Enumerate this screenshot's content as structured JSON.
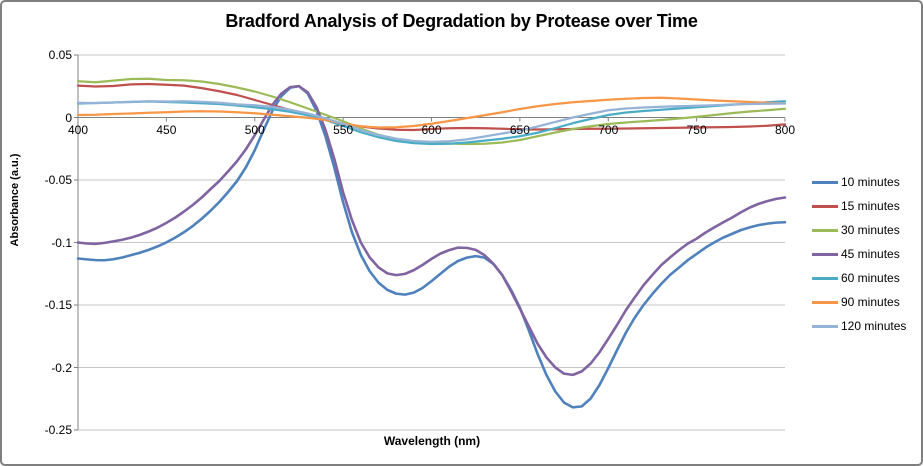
{
  "window": {
    "background": "#FFFFFF",
    "border_color": "#7F7F7F"
  },
  "chart_data": {
    "type": "line",
    "title": "Bradford Analysis of Degradation by Protease over Time",
    "xlabel": "Wavelength (nm)",
    "ylabel": "Absorbance (a.u.)",
    "xlim": [
      400,
      800
    ],
    "ylim": [
      -0.25,
      0.05
    ],
    "x_ticks": [
      400,
      450,
      500,
      550,
      600,
      650,
      700,
      750,
      800
    ],
    "y_ticks": [
      0.05,
      0,
      -0.05,
      -0.1,
      -0.15,
      -0.2,
      -0.25
    ],
    "y_tick_labels": [
      "0.05",
      "0",
      "-0.05",
      "-0.1",
      "-0.15",
      "-0.2",
      "-0.25"
    ],
    "grid": true,
    "gridline_color": "#C6C6C6",
    "axis_color": "#808080",
    "legend_position": "right",
    "series": [
      {
        "name": "10 minutes",
        "color": "#4F81BD",
        "stroke_width": 2.6,
        "x_start": 400,
        "x_step": 5,
        "values": [
          -0.1128,
          -0.1135,
          -0.1141,
          -0.1142,
          -0.1134,
          -0.112,
          -0.1101,
          -0.1082,
          -0.1059,
          -0.1031,
          -0.0999,
          -0.0961,
          -0.0917,
          -0.0867,
          -0.081,
          -0.0746,
          -0.0675,
          -0.0595,
          -0.0508,
          -0.0398,
          -0.0262,
          -0.0101,
          0.0054,
          0.0171,
          0.0238,
          0.0251,
          0.0192,
          0.0052,
          -0.015,
          -0.04,
          -0.0678,
          -0.0918,
          -0.1099,
          -0.1229,
          -0.1321,
          -0.1379,
          -0.1409,
          -0.1417,
          -0.1401,
          -0.1363,
          -0.1309,
          -0.1251,
          -0.1193,
          -0.1148,
          -0.1121,
          -0.1109,
          -0.1121,
          -0.1171,
          -0.1259,
          -0.1379,
          -0.1521,
          -0.17,
          -0.1891,
          -0.2059,
          -0.2191,
          -0.2281,
          -0.2319,
          -0.2311,
          -0.2249,
          -0.2141,
          -0.2005,
          -0.1861,
          -0.1721,
          -0.1601,
          -0.1499,
          -0.1411,
          -0.1331,
          -0.1259,
          -0.1201,
          -0.1141,
          -0.1091,
          -0.1041,
          -0.0999,
          -0.0961,
          -0.0931,
          -0.0901,
          -0.0879,
          -0.0861,
          -0.0849,
          -0.0841,
          -0.0838
        ]
      },
      {
        "name": "15 minutes",
        "color": "#C0504D",
        "stroke_width": 2.2,
        "x_start": 400,
        "x_step": 10,
        "values": [
          0.0255,
          0.0248,
          0.0252,
          0.0265,
          0.0268,
          0.0262,
          0.0255,
          0.0235,
          0.021,
          0.018,
          0.014,
          0.01,
          0.006,
          0.002,
          -0.002,
          -0.005,
          -0.0072,
          -0.0088,
          -0.0098,
          -0.01,
          -0.0092,
          -0.0086,
          -0.0084,
          -0.0086,
          -0.009,
          -0.0094,
          -0.0096,
          -0.0094,
          -0.0092,
          -0.009,
          -0.009,
          -0.0088,
          -0.0086,
          -0.0084,
          -0.0082,
          -0.008,
          -0.0078,
          -0.0076,
          -0.0072,
          -0.0066,
          -0.0055
        ]
      },
      {
        "name": "30 minutes",
        "color": "#9BBB59",
        "stroke_width": 2.2,
        "x_start": 400,
        "x_step": 10,
        "values": [
          0.029,
          0.0282,
          0.0295,
          0.0308,
          0.031,
          0.03,
          0.0298,
          0.0288,
          0.0268,
          0.024,
          0.0208,
          0.0168,
          0.0122,
          0.0072,
          0.0022,
          -0.003,
          -0.0088,
          -0.0138,
          -0.017,
          -0.019,
          -0.02,
          -0.0208,
          -0.0212,
          -0.021,
          -0.02,
          -0.018,
          -0.015,
          -0.012,
          -0.0092,
          -0.007,
          -0.0052,
          -0.004,
          -0.003,
          -0.002,
          -0.0008,
          0.0005,
          0.002,
          0.0035,
          0.0048,
          0.0058,
          0.007
        ]
      },
      {
        "name": "45 minutes",
        "color": "#8064A2",
        "stroke_width": 2.6,
        "x_start": 400,
        "x_step": 5,
        "values": [
          -0.1,
          -0.1008,
          -0.1011,
          -0.1003,
          -0.0991,
          -0.0978,
          -0.0961,
          -0.0939,
          -0.0912,
          -0.0881,
          -0.0843,
          -0.0801,
          -0.0752,
          -0.0699,
          -0.064,
          -0.0573,
          -0.0507,
          -0.043,
          -0.0349,
          -0.0254,
          -0.0141,
          -0.0019,
          0.0101,
          0.0191,
          0.0243,
          0.0251,
          0.0201,
          0.0081,
          -0.0099,
          -0.033,
          -0.0599,
          -0.0821,
          -0.0999,
          -0.1119,
          -0.1199,
          -0.1247,
          -0.1261,
          -0.1251,
          -0.1221,
          -0.1179,
          -0.1131,
          -0.1089,
          -0.1061,
          -0.1041,
          -0.1043,
          -0.1059,
          -0.1101,
          -0.1169,
          -0.1261,
          -0.1389,
          -0.1529,
          -0.1669,
          -0.1809,
          -0.1919,
          -0.1999,
          -0.2049,
          -0.2059,
          -0.2031,
          -0.1969,
          -0.1879,
          -0.1771,
          -0.1659,
          -0.1541,
          -0.1439,
          -0.1341,
          -0.1259,
          -0.1181,
          -0.1119,
          -0.1061,
          -0.1009,
          -0.0969,
          -0.0921,
          -0.0879,
          -0.0839,
          -0.0801,
          -0.0759,
          -0.0721,
          -0.0691,
          -0.0669,
          -0.0651,
          -0.064
        ]
      },
      {
        "name": "60 minutes",
        "color": "#4BACC6",
        "stroke_width": 2.2,
        "x_start": 400,
        "x_step": 10,
        "values": [
          0.0112,
          0.0116,
          0.012,
          0.0124,
          0.0128,
          0.0124,
          0.012,
          0.0114,
          0.0108,
          0.0096,
          0.0082,
          0.0066,
          0.0046,
          0.0018,
          -0.002,
          -0.0068,
          -0.0118,
          -0.0158,
          -0.0188,
          -0.0205,
          -0.0212,
          -0.021,
          -0.02,
          -0.0185,
          -0.017,
          -0.015,
          -0.0122,
          -0.0085,
          -0.0045,
          -0.0012,
          0.002,
          0.004,
          0.0052,
          0.0062,
          0.0072,
          0.0082,
          0.0092,
          0.0102,
          0.0112,
          0.0122,
          0.013
        ]
      },
      {
        "name": "90 minutes",
        "color": "#F79646",
        "stroke_width": 2.2,
        "x_start": 400,
        "x_step": 10,
        "values": [
          0.002,
          0.0022,
          0.0028,
          0.0032,
          0.0038,
          0.0042,
          0.0048,
          0.005,
          0.0048,
          0.0042,
          0.0034,
          0.0022,
          0.001,
          -0.0002,
          -0.002,
          -0.0048,
          -0.007,
          -0.008,
          -0.0078,
          -0.0068,
          -0.005,
          -0.0028,
          -0.0005,
          0.0018,
          0.0042,
          0.0068,
          0.009,
          0.0108,
          0.0122,
          0.0132,
          0.0142,
          0.015,
          0.0156,
          0.0158,
          0.0152,
          0.0144,
          0.0136,
          0.013,
          0.0124,
          0.0118,
          0.0112
        ]
      },
      {
        "name": "120 minutes",
        "color": "#95B3D7",
        "stroke_width": 2.2,
        "x_start": 400,
        "x_step": 10,
        "values": [
          0.0118,
          0.0115,
          0.012,
          0.0126,
          0.013,
          0.0128,
          0.013,
          0.0125,
          0.0118,
          0.0105,
          0.0098,
          0.0085,
          0.0062,
          0.0032,
          -0.0005,
          -0.005,
          -0.01,
          -0.014,
          -0.017,
          -0.0188,
          -0.0195,
          -0.019,
          -0.0175,
          -0.0152,
          -0.0128,
          -0.0105,
          -0.0072,
          -0.0035,
          0.0,
          0.003,
          0.0058,
          0.0072,
          0.008,
          0.0086,
          0.009,
          0.0094,
          0.0098,
          0.0104,
          0.0108,
          0.011,
          0.0112
        ]
      }
    ]
  }
}
